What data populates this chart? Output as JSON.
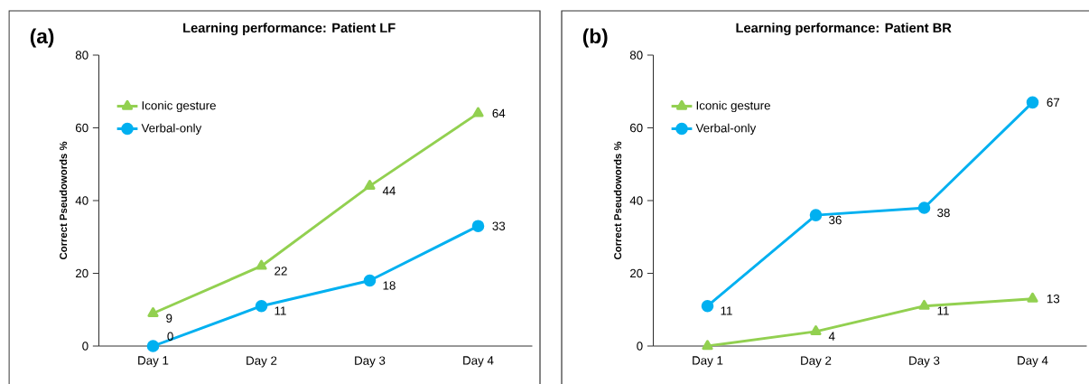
{
  "chart_data": [
    {
      "type": "line",
      "title": "Learning performance: Patient LF",
      "ylabel": "Correct Pseudowords %",
      "annotations": [
        "(a)"
      ],
      "categories": [
        "Day 1",
        "Day 2",
        "Day 3",
        "Day 4"
      ],
      "series": [
        {
          "name": "Iconic gesture",
          "color": "#92d050",
          "marker": "triangle",
          "values": [
            9,
            22,
            44,
            64
          ]
        },
        {
          "name": "Verbal-only",
          "color": "#00b0f0",
          "marker": "circle",
          "values": [
            0,
            11,
            18,
            33
          ]
        }
      ],
      "ylim": [
        0,
        80
      ],
      "yticks": [
        0,
        20,
        40,
        60,
        80
      ],
      "legend": "top left",
      "data_labels": true,
      "line_style": "solid"
    },
    {
      "type": "line",
      "title": "Learning performance: Patient BR",
      "ylabel": "Correct Pseudowords %",
      "annotations": [
        "(b)"
      ],
      "categories": [
        "Day 1",
        "Day 2",
        "Day 3",
        "Day 4"
      ],
      "series": [
        {
          "name": "Iconic gesture",
          "color": "#92d050",
          "marker": "triangle",
          "values": [
            0,
            4,
            11,
            13
          ],
          "value_labels": [
            null,
            "4",
            "11",
            "13"
          ]
        },
        {
          "name": "Verbal-only",
          "color": "#00b0f0",
          "marker": "circle",
          "values": [
            11,
            36,
            38,
            67
          ],
          "value_labels": [
            "11",
            "36",
            "38",
            "67"
          ]
        }
      ],
      "ylim": [
        0,
        80
      ],
      "yticks": [
        0,
        20,
        40,
        60,
        80
      ],
      "legend": "top left",
      "line_style": "solid"
    }
  ]
}
